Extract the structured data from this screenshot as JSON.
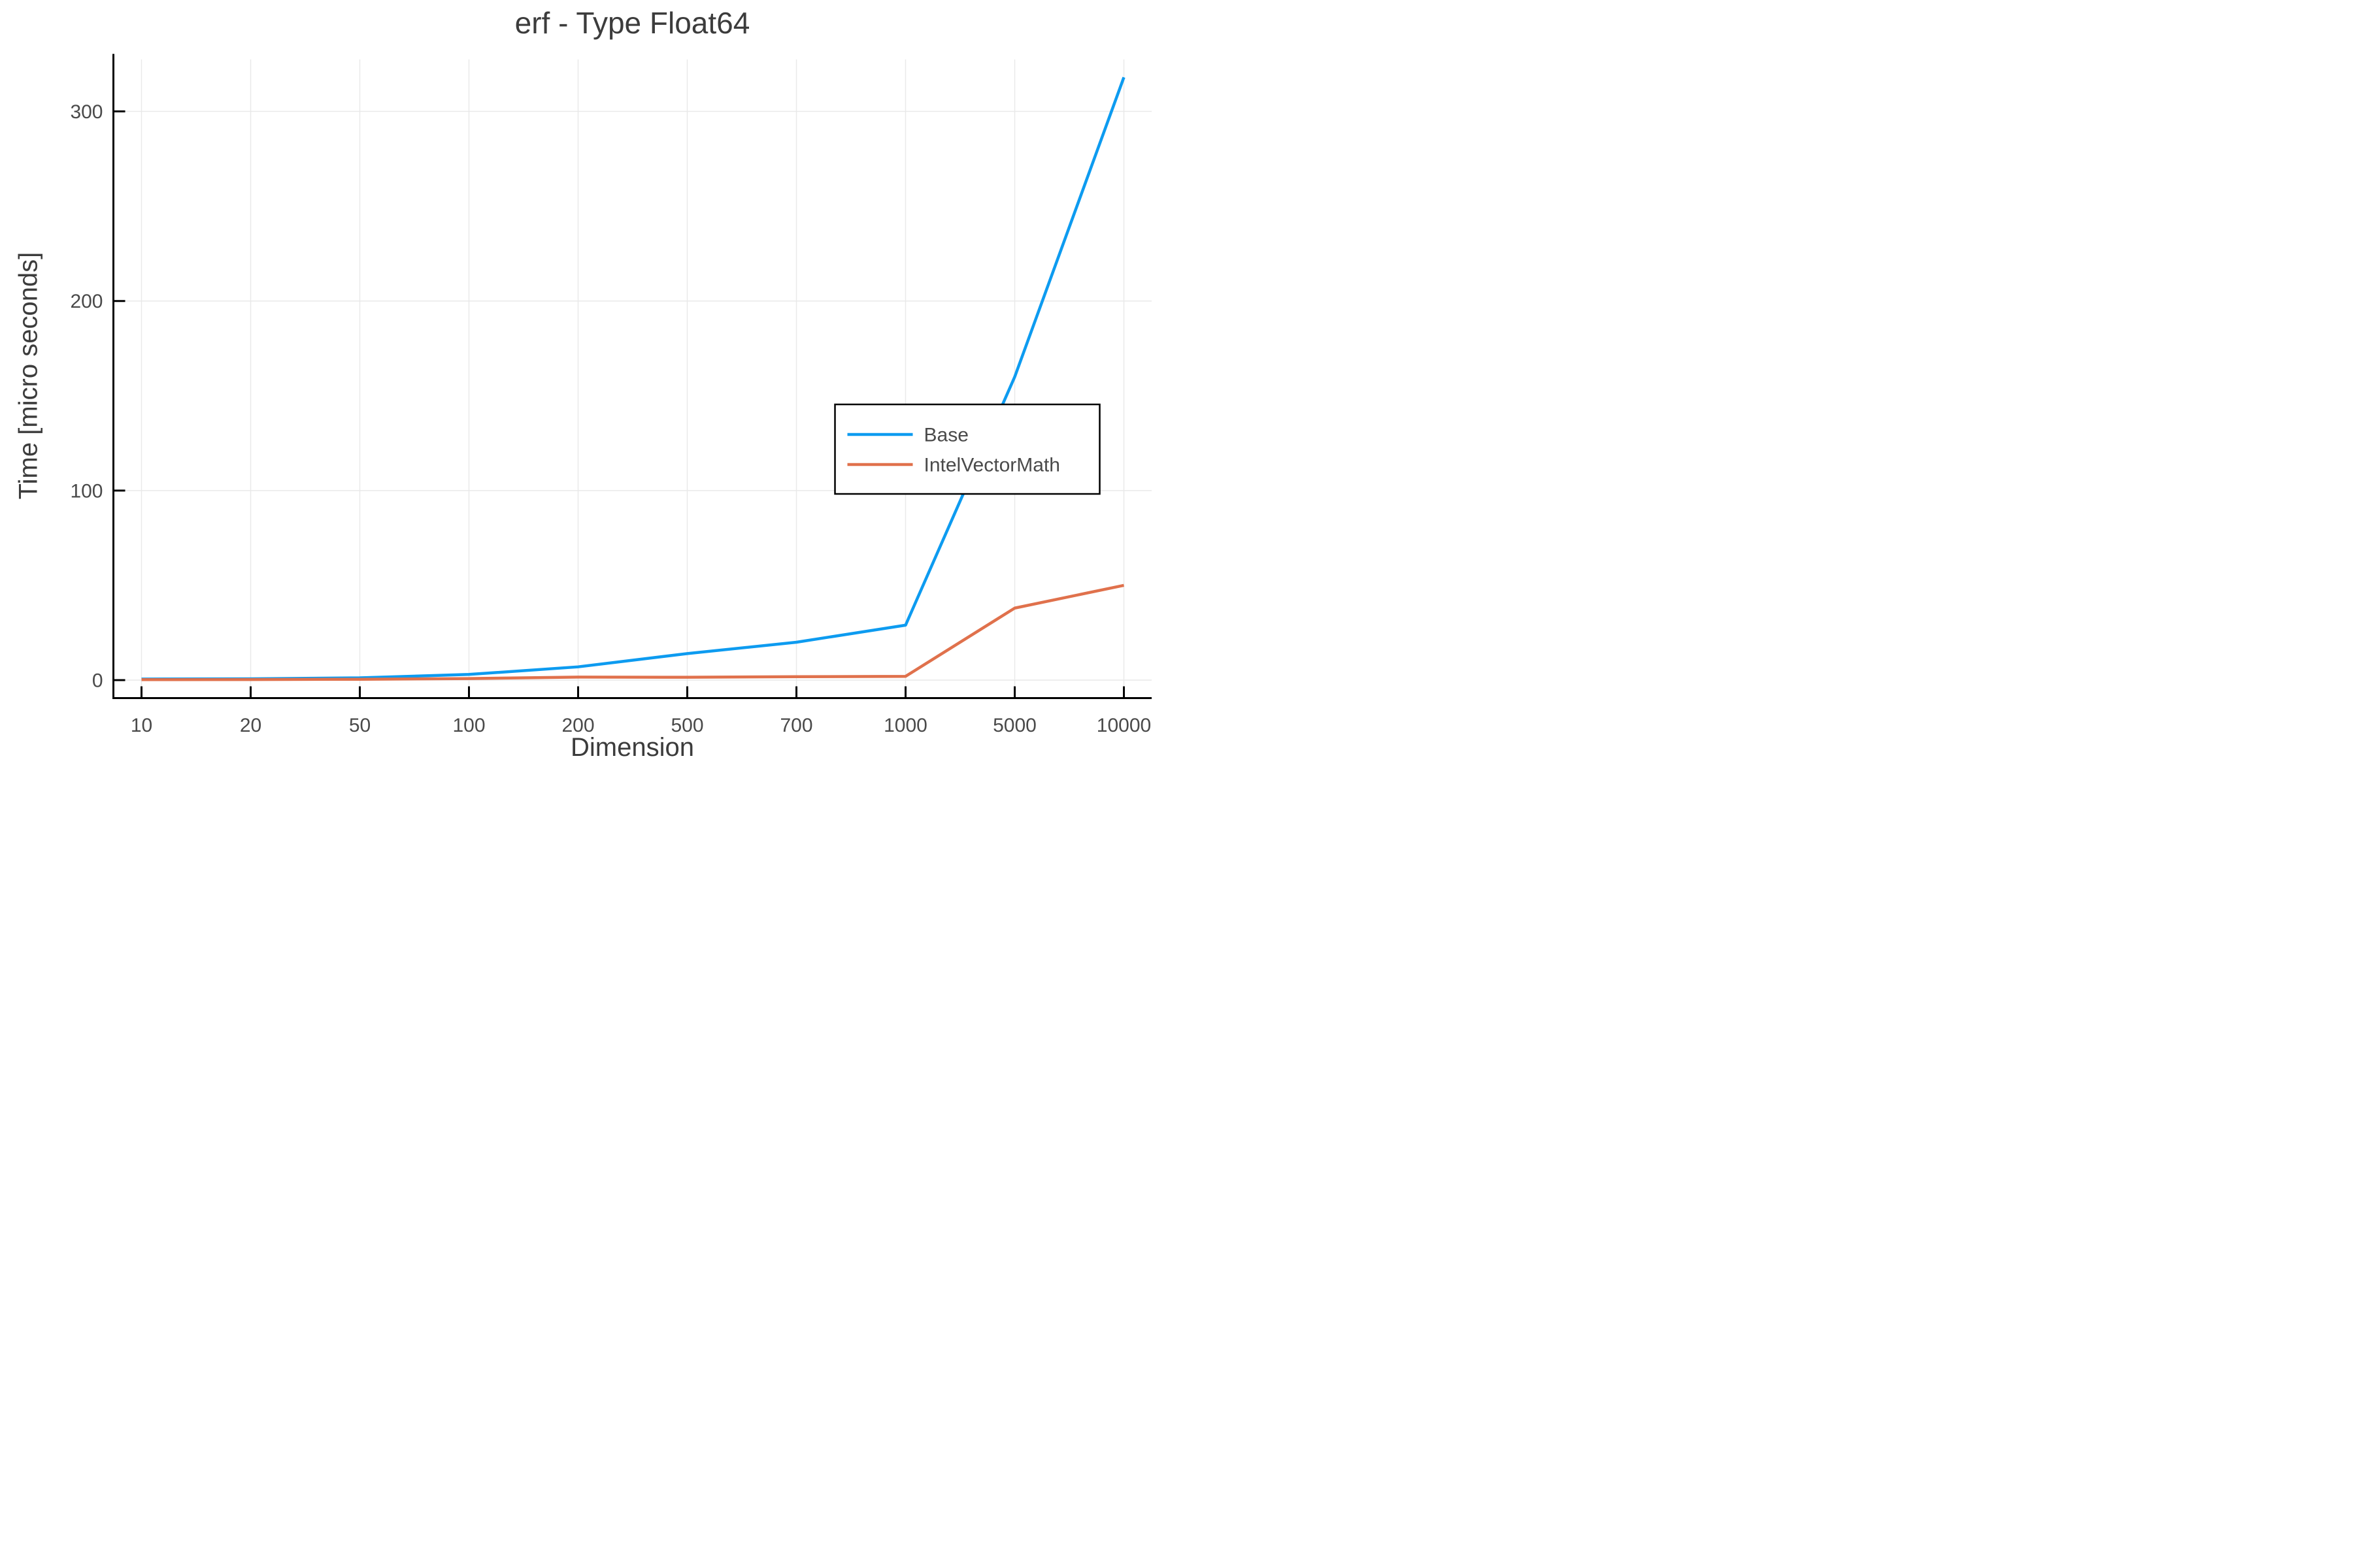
{
  "figure": {
    "background_color": "#ffffff",
    "title": "erf - Type Float64"
  },
  "chart_data": {
    "type": "line",
    "title": "erf - Type Float64",
    "xlabel": "Dimension",
    "ylabel": "Time [micro seconds]",
    "x_scale": "categorical-even-spacing",
    "categories": [
      "10",
      "20",
      "50",
      "100",
      "200",
      "500",
      "700",
      "1000",
      "5000",
      "10000"
    ],
    "series": [
      {
        "name": "Base",
        "color": "#0D9BF0",
        "values": [
          0.55,
          0.7,
          1.2,
          3,
          7,
          14,
          20,
          29,
          160,
          318
        ]
      },
      {
        "name": "IntelVectorMath",
        "color": "#E0714C",
        "values": [
          0.25,
          0.3,
          0.45,
          0.8,
          1.6,
          1.5,
          1.8,
          2,
          38,
          50
        ]
      }
    ],
    "yticks": [
      0,
      100,
      200,
      300
    ],
    "ylim": [
      0,
      330
    ],
    "grid": true,
    "gridline_color": "#e9e9e9",
    "axis_color": "#000000",
    "tick_label_color": "#4a4a4a",
    "title_color": "#3c3c3c",
    "legend": {
      "position": "center-right",
      "background": "#ffffff",
      "border_color": "#000000",
      "entries": [
        "Base",
        "IntelVectorMath"
      ]
    }
  }
}
